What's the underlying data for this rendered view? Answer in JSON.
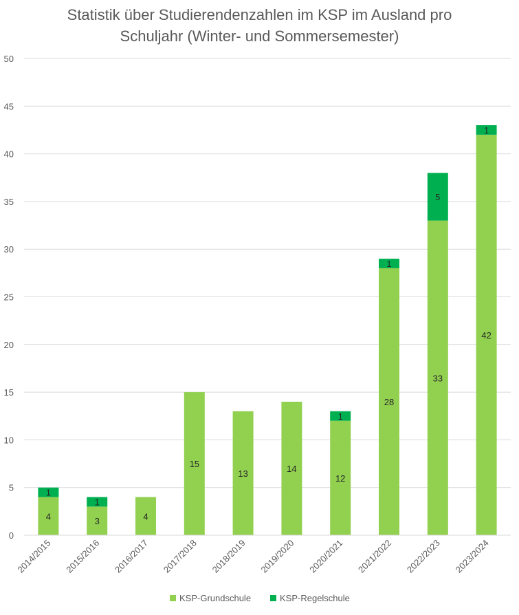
{
  "chart_data": {
    "type": "bar",
    "stacked": true,
    "title_lines": [
      "Statistik über Studierendenzahlen im KSP im Ausland pro",
      "Schuljahr (Winter- und Sommersemester)"
    ],
    "categories": [
      "2014/2015",
      "2015/2016",
      "2016/2017",
      "2017/2018",
      "2018/2019",
      "2019/2020",
      "2020/2021",
      "2021/2022",
      "2022/2023",
      "2023/2024"
    ],
    "series": [
      {
        "name": "KSP-Grundschule",
        "color": "#92D050",
        "values": [
          4,
          3,
          4,
          15,
          13,
          14,
          12,
          28,
          33,
          42
        ]
      },
      {
        "name": "KSP-Regelschule",
        "color": "#00B050",
        "values": [
          1,
          1,
          0,
          0,
          0,
          0,
          1,
          1,
          5,
          1
        ]
      }
    ],
    "ylim": [
      0,
      50
    ],
    "yticks": [
      "0",
      "5",
      "10",
      "15",
      "20",
      "25",
      "30",
      "35",
      "40",
      "45",
      "50"
    ],
    "grid": true,
    "legend_position": "bottom"
  }
}
